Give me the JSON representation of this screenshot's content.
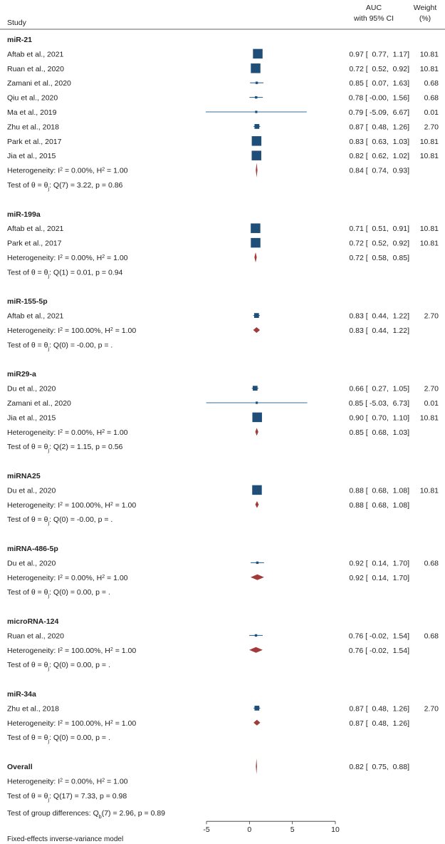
{
  "header": {
    "study": "Study",
    "effect_line1": "AUC",
    "effect_line2": "with 95% CI",
    "weight_line1": "Weight",
    "weight_line2": "(%)"
  },
  "chart_data": {
    "type": "forest",
    "x_ticks": [
      "-5",
      "0",
      "5",
      "10"
    ],
    "xlim": [
      -5,
      10
    ],
    "colors": {
      "marker": "#1f4e79",
      "ci": "#3a6d99",
      "diamond": "#a23a3a"
    },
    "model_note": "Fixed-effects inverse-variance model",
    "group_diff": "Test of group differences: Q<sub>b</sub>(7) = 2.96, p = 0.89",
    "groups": [
      {
        "name": "miR-21",
        "studies": [
          {
            "label": "Aftab et al., 2021",
            "est": 0.97,
            "lo": 0.77,
            "hi": 1.17,
            "text": "0.97 [  0.77,  1.17]",
            "weight": 10.81,
            "weight_text": "10.81"
          },
          {
            "label": "Ruan et al., 2020",
            "est": 0.72,
            "lo": 0.52,
            "hi": 0.92,
            "text": "0.72 [  0.52,  0.92]",
            "weight": 10.81,
            "weight_text": "10.81"
          },
          {
            "label": "Zamani et al., 2020",
            "est": 0.85,
            "lo": 0.07,
            "hi": 1.63,
            "text": "0.85 [  0.07,  1.63]",
            "weight": 0.68,
            "weight_text": "0.68"
          },
          {
            "label": "Qiu et al., 2020",
            "est": 0.78,
            "lo": -0.0,
            "hi": 1.56,
            "text": "0.78 [ -0.00,  1.56]",
            "weight": 0.68,
            "weight_text": "0.68"
          },
          {
            "label": "Ma et al., 2019",
            "est": 0.79,
            "lo": -5.09,
            "hi": 6.67,
            "text": "0.79 [ -5.09,  6.67]",
            "weight": 0.01,
            "weight_text": "0.01"
          },
          {
            "label": "Zhu et al., 2018",
            "est": 0.87,
            "lo": 0.48,
            "hi": 1.26,
            "text": "0.87 [  0.48,  1.26]",
            "weight": 2.7,
            "weight_text": "2.70"
          },
          {
            "label": "Park et al., 2017",
            "est": 0.83,
            "lo": 0.63,
            "hi": 1.03,
            "text": "0.83 [  0.63,  1.03]",
            "weight": 10.81,
            "weight_text": "10.81"
          },
          {
            "label": "Jia et al., 2015",
            "est": 0.82,
            "lo": 0.62,
            "hi": 1.02,
            "text": "0.82 [  0.62,  1.02]",
            "weight": 10.81,
            "weight_text": "10.81"
          }
        ],
        "summary": {
          "label": "Heterogeneity: I<sup>2</sup> = 0.00%, H<sup>2</sup> = 1.00",
          "est": 0.84,
          "lo": 0.74,
          "hi": 0.93,
          "text": "0.84 [  0.74,  0.93]"
        },
        "test": "Test of θ = θ<sub>j</sub>: Q(7) = 3.22, p = 0.86"
      },
      {
        "name": "miR-199a",
        "studies": [
          {
            "label": "Aftab et al., 2021",
            "est": 0.71,
            "lo": 0.51,
            "hi": 0.91,
            "text": "0.71 [  0.51,  0.91]",
            "weight": 10.81,
            "weight_text": "10.81"
          },
          {
            "label": "Park et al., 2017",
            "est": 0.72,
            "lo": 0.52,
            "hi": 0.92,
            "text": "0.72 [  0.52,  0.92]",
            "weight": 10.81,
            "weight_text": "10.81"
          }
        ],
        "summary": {
          "label": "Heterogeneity: I<sup>2</sup> = 0.00%, H<sup>2</sup> = 1.00",
          "est": 0.72,
          "lo": 0.58,
          "hi": 0.85,
          "text": "0.72 [  0.58,  0.85]"
        },
        "test": "Test of θ = θ<sub>j</sub>: Q(1) = 0.01, p = 0.94"
      },
      {
        "name": "miR-155-5p",
        "studies": [
          {
            "label": "Aftab et al., 2021",
            "est": 0.83,
            "lo": 0.44,
            "hi": 1.22,
            "text": "0.83 [  0.44,  1.22]",
            "weight": 2.7,
            "weight_text": "2.70"
          }
        ],
        "summary": {
          "label": "Heterogeneity: I<sup>2</sup> = 100.00%, H<sup>2</sup> = 1.00",
          "est": 0.83,
          "lo": 0.44,
          "hi": 1.22,
          "text": "0.83 [  0.44,  1.22]"
        },
        "test": "Test of θ = θ<sub>j</sub>: Q(0) = -0.00, p = ."
      },
      {
        "name": "miR29-a",
        "studies": [
          {
            "label": "Du et al., 2020",
            "est": 0.66,
            "lo": 0.27,
            "hi": 1.05,
            "text": "0.66 [  0.27,  1.05]",
            "weight": 2.7,
            "weight_text": "2.70"
          },
          {
            "label": "Zamani et al., 2020",
            "est": 0.85,
            "lo": -5.03,
            "hi": 6.73,
            "text": "0.85 [ -5.03,  6.73]",
            "weight": 0.01,
            "weight_text": "0.01"
          },
          {
            "label": "Jia et al., 2015",
            "est": 0.9,
            "lo": 0.7,
            "hi": 1.1,
            "text": "0.90 [  0.70,  1.10]",
            "weight": 10.81,
            "weight_text": "10.81"
          }
        ],
        "summary": {
          "label": "Heterogeneity: I<sup>2</sup> = 0.00%, H<sup>2</sup> = 1.00",
          "est": 0.85,
          "lo": 0.68,
          "hi": 1.03,
          "text": "0.85 [  0.68,  1.03]"
        },
        "test": "Test of θ = θ<sub>j</sub>: Q(2) = 1.15, p = 0.56"
      },
      {
        "name": "miRNA25",
        "studies": [
          {
            "label": "Du et al., 2020",
            "est": 0.88,
            "lo": 0.68,
            "hi": 1.08,
            "text": "0.88 [  0.68,  1.08]",
            "weight": 10.81,
            "weight_text": "10.81"
          }
        ],
        "summary": {
          "label": "Heterogeneity: I<sup>2</sup> = 100.00%, H<sup>2</sup> = 1.00",
          "est": 0.88,
          "lo": 0.68,
          "hi": 1.08,
          "text": "0.88 [  0.68,  1.08]"
        },
        "test": "Test of θ = θ<sub>j</sub>: Q(0) = -0.00, p = ."
      },
      {
        "name": "miRNA-486-5p",
        "studies": [
          {
            "label": "Du et al., 2020",
            "est": 0.92,
            "lo": 0.14,
            "hi": 1.7,
            "text": "0.92 [  0.14,  1.70]",
            "weight": 0.68,
            "weight_text": "0.68"
          }
        ],
        "summary": {
          "label": "Heterogeneity: I<sup>2</sup> = 0.00%, H<sup>2</sup> = 1.00",
          "est": 0.92,
          "lo": 0.14,
          "hi": 1.7,
          "text": "0.92 [  0.14,  1.70]"
        },
        "test": "Test of θ = θ<sub>j</sub>: Q(0) = 0.00, p = ."
      },
      {
        "name": "microRNA-124",
        "studies": [
          {
            "label": "Ruan et al., 2020",
            "est": 0.76,
            "lo": -0.02,
            "hi": 1.54,
            "text": "0.76 [ -0.02,  1.54]",
            "weight": 0.68,
            "weight_text": "0.68"
          }
        ],
        "summary": {
          "label": "Heterogeneity: I<sup>2</sup> = 100.00%, H<sup>2</sup> = 1.00",
          "est": 0.76,
          "lo": -0.02,
          "hi": 1.54,
          "text": "0.76 [ -0.02,  1.54]"
        },
        "test": "Test of θ = θ<sub>j</sub>: Q(0) = 0.00, p = ."
      },
      {
        "name": "miR-34a",
        "studies": [
          {
            "label": "Zhu et al., 2018",
            "est": 0.87,
            "lo": 0.48,
            "hi": 1.26,
            "text": "0.87 [  0.48,  1.26]",
            "weight": 2.7,
            "weight_text": "2.70"
          }
        ],
        "summary": {
          "label": "Heterogeneity: I<sup>2</sup> = 100.00%, H<sup>2</sup> = 1.00",
          "est": 0.87,
          "lo": 0.48,
          "hi": 1.26,
          "text": "0.87 [  0.48,  1.26]"
        },
        "test": "Test of θ = θ<sub>j</sub>: Q(0) = 0.00, p = ."
      }
    ],
    "overall": {
      "name": "Overall",
      "summary": {
        "label": "Heterogeneity: I<sup>2</sup> = 0.00%, H<sup>2</sup> = 1.00",
        "est": 0.82,
        "lo": 0.75,
        "hi": 0.88,
        "text": "0.82 [  0.75,  0.88]"
      },
      "test": "Test of θ = θ<sub>j</sub>: Q(17) = 7.33, p = 0.98"
    }
  }
}
